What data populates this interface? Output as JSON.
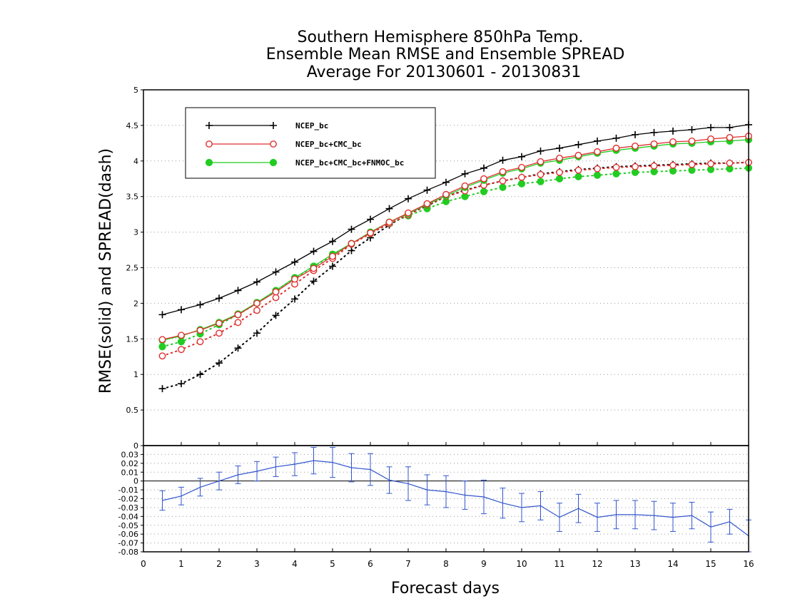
{
  "chart_data": {
    "type": "line",
    "title_lines": [
      "Southern Hemisphere 850hPa Temp.",
      "Ensemble Mean RMSE and Ensemble SPREAD",
      "Average For 20130601 - 20130831"
    ],
    "ylabel": "RMSE(solid) and SPREAD(dash)",
    "xlabel": "Forecast days",
    "x": [
      0.5,
      1,
      1.5,
      2,
      2.5,
      3,
      3.5,
      4,
      4.5,
      5,
      5.5,
      6,
      6.5,
      7,
      7.5,
      8,
      8.5,
      9,
      9.5,
      10,
      10.5,
      11,
      11.5,
      12,
      12.5,
      13,
      13.5,
      14,
      14.5,
      15,
      15.5,
      16
    ],
    "xlim": [
      0,
      16
    ],
    "xticks": [
      "0",
      "1",
      "2",
      "3",
      "4",
      "5",
      "6",
      "7",
      "8",
      "9",
      "10",
      "11",
      "12",
      "13",
      "14",
      "15",
      "16"
    ],
    "upper": {
      "ylim": [
        0,
        5
      ],
      "yticks": [
        "0",
        "0.5",
        "1",
        "1.5",
        "2",
        "2.5",
        "3",
        "3.5",
        "4",
        "4.5",
        "5"
      ],
      "grid": true,
      "legend_position": "top-left",
      "series": [
        {
          "name": "NCEP_bc",
          "color": "#000000",
          "marker": "plus",
          "rmse": [
            1.84,
            1.91,
            1.98,
            2.07,
            2.18,
            2.3,
            2.44,
            2.58,
            2.73,
            2.87,
            3.04,
            3.18,
            3.33,
            3.47,
            3.59,
            3.7,
            3.82,
            3.9,
            4.01,
            4.06,
            4.14,
            4.18,
            4.23,
            4.28,
            4.32,
            4.37,
            4.4,
            4.42,
            4.44,
            4.47,
            4.47,
            4.51
          ],
          "spread": [
            0.8,
            0.87,
            1.0,
            1.16,
            1.37,
            1.58,
            1.83,
            2.06,
            2.31,
            2.52,
            2.74,
            2.92,
            3.1,
            3.25,
            3.37,
            3.5,
            3.59,
            3.66,
            3.72,
            3.77,
            3.82,
            3.85,
            3.88,
            3.9,
            3.92,
            3.93,
            3.94,
            3.95,
            3.96,
            3.97,
            3.97,
            3.98
          ]
        },
        {
          "name": "NCEP_bc+CMC_bc",
          "color": "#e03030",
          "marker": "open-circle",
          "rmse": [
            1.49,
            1.55,
            1.62,
            1.72,
            1.84,
            2.0,
            2.16,
            2.34,
            2.49,
            2.66,
            2.84,
            2.99,
            3.14,
            3.27,
            3.4,
            3.53,
            3.65,
            3.75,
            3.85,
            3.91,
            3.99,
            4.04,
            4.08,
            4.13,
            4.18,
            4.21,
            4.24,
            4.27,
            4.28,
            4.31,
            4.33,
            4.35
          ],
          "spread": [
            1.26,
            1.35,
            1.46,
            1.58,
            1.73,
            1.9,
            2.08,
            2.27,
            2.46,
            2.63,
            2.83,
            2.98,
            3.12,
            3.24,
            3.38,
            3.5,
            3.58,
            3.66,
            3.72,
            3.77,
            3.81,
            3.84,
            3.87,
            3.89,
            3.91,
            3.92,
            3.93,
            3.94,
            3.95,
            3.96,
            3.97,
            3.98
          ]
        },
        {
          "name": "NCEP_bc+CMC_bc+FNMOC_bc",
          "color": "#22cc22",
          "marker": "filled-circle",
          "rmse": [
            1.48,
            1.54,
            1.63,
            1.73,
            1.85,
            2.01,
            2.18,
            2.36,
            2.52,
            2.69,
            2.84,
            3.0,
            3.14,
            3.26,
            3.39,
            3.51,
            3.63,
            3.73,
            3.83,
            3.89,
            3.97,
            4.01,
            4.06,
            4.11,
            4.15,
            4.18,
            4.21,
            4.24,
            4.25,
            4.27,
            4.28,
            4.3
          ],
          "spread": [
            1.39,
            1.46,
            1.57,
            1.7,
            1.84,
            2.0,
            2.17,
            2.35,
            2.52,
            2.67,
            2.84,
            2.98,
            3.12,
            3.23,
            3.33,
            3.43,
            3.5,
            3.57,
            3.63,
            3.68,
            3.71,
            3.75,
            3.78,
            3.8,
            3.82,
            3.84,
            3.85,
            3.86,
            3.87,
            3.88,
            3.89,
            3.9
          ]
        }
      ]
    },
    "lower": {
      "ylim": [
        -0.08,
        0.04
      ],
      "yticks": [
        "-0.08",
        "-0.07",
        "-0.06",
        "-0.05",
        "-0.04",
        "-0.03",
        "-0.02",
        "-0.01",
        "0",
        "0.01",
        "0.02",
        "0.03"
      ],
      "ytick_values": [
        -0.08,
        -0.07,
        -0.06,
        -0.05,
        -0.04,
        -0.03,
        -0.02,
        -0.01,
        0,
        0.01,
        0.02,
        0.03
      ],
      "grid": true,
      "color": "#3355cc",
      "values": [
        -0.022,
        -0.017,
        -0.007,
        0.0,
        0.007,
        0.011,
        0.016,
        0.019,
        0.023,
        0.021,
        0.015,
        0.013,
        0.001,
        -0.003,
        -0.01,
        -0.012,
        -0.016,
        -0.018,
        -0.025,
        -0.03,
        -0.028,
        -0.041,
        -0.031,
        -0.041,
        -0.038,
        -0.038,
        -0.039,
        -0.041,
        -0.039,
        -0.052,
        -0.046,
        -0.062
      ],
      "errors": [
        0.011,
        0.01,
        0.01,
        0.01,
        0.01,
        0.011,
        0.011,
        0.013,
        0.015,
        0.017,
        0.016,
        0.018,
        0.015,
        0.019,
        0.017,
        0.018,
        0.016,
        0.019,
        0.017,
        0.016,
        0.016,
        0.016,
        0.016,
        0.016,
        0.016,
        0.016,
        0.016,
        0.016,
        0.015,
        0.017,
        0.014,
        0.018
      ]
    }
  }
}
